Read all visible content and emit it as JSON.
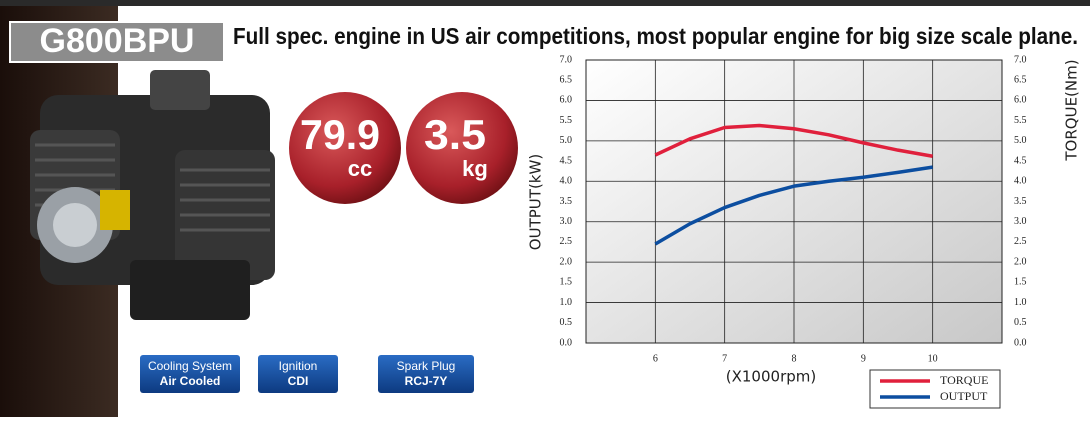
{
  "model": "G800BPU",
  "headline": "Full spec. engine in US air competitions, most popular engine for big size scale plane.",
  "badges": [
    {
      "value": "79.9",
      "unit": "cc"
    },
    {
      "value": "3.5",
      "unit": "kg"
    }
  ],
  "specs": [
    {
      "label": "Cooling System",
      "value": "Air Cooled"
    },
    {
      "label": "Ignition",
      "value": "CDI"
    },
    {
      "label": "Spark Plug",
      "value": "RCJ-7Y"
    }
  ],
  "chart_data": {
    "type": "line",
    "xlabel": "(X1000rpm)",
    "ylabel": "OUTPUT(kW)",
    "y2label": "TORQUE(Nm)",
    "x": [
      6,
      6.5,
      7,
      7.5,
      8,
      8.5,
      9,
      9.5,
      10
    ],
    "xlim": [
      5,
      11
    ],
    "xticks": [
      6,
      7,
      8,
      9,
      10
    ],
    "ylim": [
      0,
      7
    ],
    "yticks": [
      {
        "value": 0,
        "label": "0.0"
      },
      {
        "value": 0.5,
        "label": "0.5"
      },
      {
        "value": 1,
        "label": "1.0"
      },
      {
        "value": 1.5,
        "label": "1.5"
      },
      {
        "value": 2,
        "label": "2.0"
      },
      {
        "value": 2.5,
        "label": "2.5"
      },
      {
        "value": 3,
        "label": "3.0"
      },
      {
        "value": 3.5,
        "label": "3.5"
      },
      {
        "value": 4,
        "label": "4.0"
      },
      {
        "value": 4.5,
        "label": "4.5"
      },
      {
        "value": 5,
        "label": "5.0"
      },
      {
        "value": 5.5,
        "label": "5.5"
      },
      {
        "value": 6,
        "label": "6.0"
      },
      {
        "value": 6.5,
        "label": "6.5"
      },
      {
        "value": 7,
        "label": "7.0"
      }
    ],
    "y2lim": [
      0,
      7
    ],
    "y2ticks": [
      {
        "value": 0,
        "label": "0.0"
      },
      {
        "value": 0.5,
        "label": "0.5"
      },
      {
        "value": 1,
        "label": "1.0"
      },
      {
        "value": 1.5,
        "label": "1.5"
      },
      {
        "value": 2,
        "label": "2.0"
      },
      {
        "value": 2.5,
        "label": "2.5"
      },
      {
        "value": 3,
        "label": "3.0"
      },
      {
        "value": 3.5,
        "label": "3.5"
      },
      {
        "value": 4,
        "label": "4.0"
      },
      {
        "value": 4.5,
        "label": "4.5"
      },
      {
        "value": 5,
        "label": "5.0"
      },
      {
        "value": 5.5,
        "label": "5.5"
      },
      {
        "value": 6,
        "label": "6.0"
      },
      {
        "value": 6.5,
        "label": "6.5"
      },
      {
        "value": 7,
        "label": "7.0"
      }
    ],
    "grid": true,
    "legend": "lower right",
    "series": [
      {
        "name": "TORQUE",
        "color": "#e0203c",
        "axis": "y2",
        "values": [
          4.65,
          5.05,
          5.33,
          5.38,
          5.3,
          5.15,
          4.95,
          4.77,
          4.62
        ]
      },
      {
        "name": "OUTPUT",
        "color": "#0c4ea0",
        "values": [
          2.45,
          2.95,
          3.35,
          3.65,
          3.88,
          4.0,
          4.1,
          4.22,
          4.35
        ]
      }
    ]
  }
}
